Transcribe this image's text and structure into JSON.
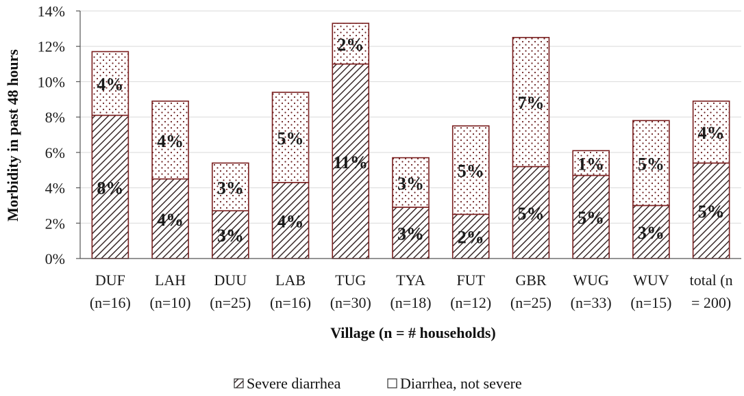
{
  "chart_data": {
    "type": "bar",
    "stacked": true,
    "title": "",
    "xlabel": "Village (n = # households)",
    "ylabel": "Morbidity in past 48 hours",
    "ylim": [
      0,
      14
    ],
    "yticks": [
      "0%",
      "2%",
      "4%",
      "6%",
      "8%",
      "10%",
      "12%",
      "14%"
    ],
    "grid": true,
    "legend_position": "bottom",
    "categories": [
      [
        "DUF",
        "(n=16)"
      ],
      [
        "LAH",
        "(n=10)"
      ],
      [
        "DUU",
        "(n=25)"
      ],
      [
        "LAB",
        "(n=16)"
      ],
      [
        "TUG",
        "(n=30)"
      ],
      [
        "TYA",
        "(n=18)"
      ],
      [
        "FUT",
        "(n=12)"
      ],
      [
        "GBR",
        "(n=25)"
      ],
      [
        "WUG",
        "(n=33)"
      ],
      [
        "WUV",
        "(n=15)"
      ],
      [
        "total (n",
        "= 200)"
      ]
    ],
    "series": [
      {
        "name": "Severe diarrhea",
        "color": "#7a1f1f",
        "values": [
          8.1,
          4.5,
          2.7,
          4.3,
          11.0,
          2.9,
          2.5,
          5.2,
          4.7,
          3.0,
          5.4
        ],
        "labels": [
          "8%",
          "4%",
          "3%",
          "4%",
          "11%",
          "3%",
          "2%",
          "5%",
          "5%",
          "3%",
          "5%"
        ]
      },
      {
        "name": "Diarrhea, not severe",
        "color": "#7a1f1f",
        "values": [
          3.6,
          4.4,
          2.7,
          5.1,
          2.3,
          2.8,
          5.0,
          7.3,
          1.4,
          4.8,
          3.5
        ],
        "labels": [
          "4%",
          "4%",
          "3%",
          "5%",
          "2%",
          "3%",
          "5%",
          "7%",
          "1%",
          "5%",
          "4%"
        ]
      }
    ]
  }
}
